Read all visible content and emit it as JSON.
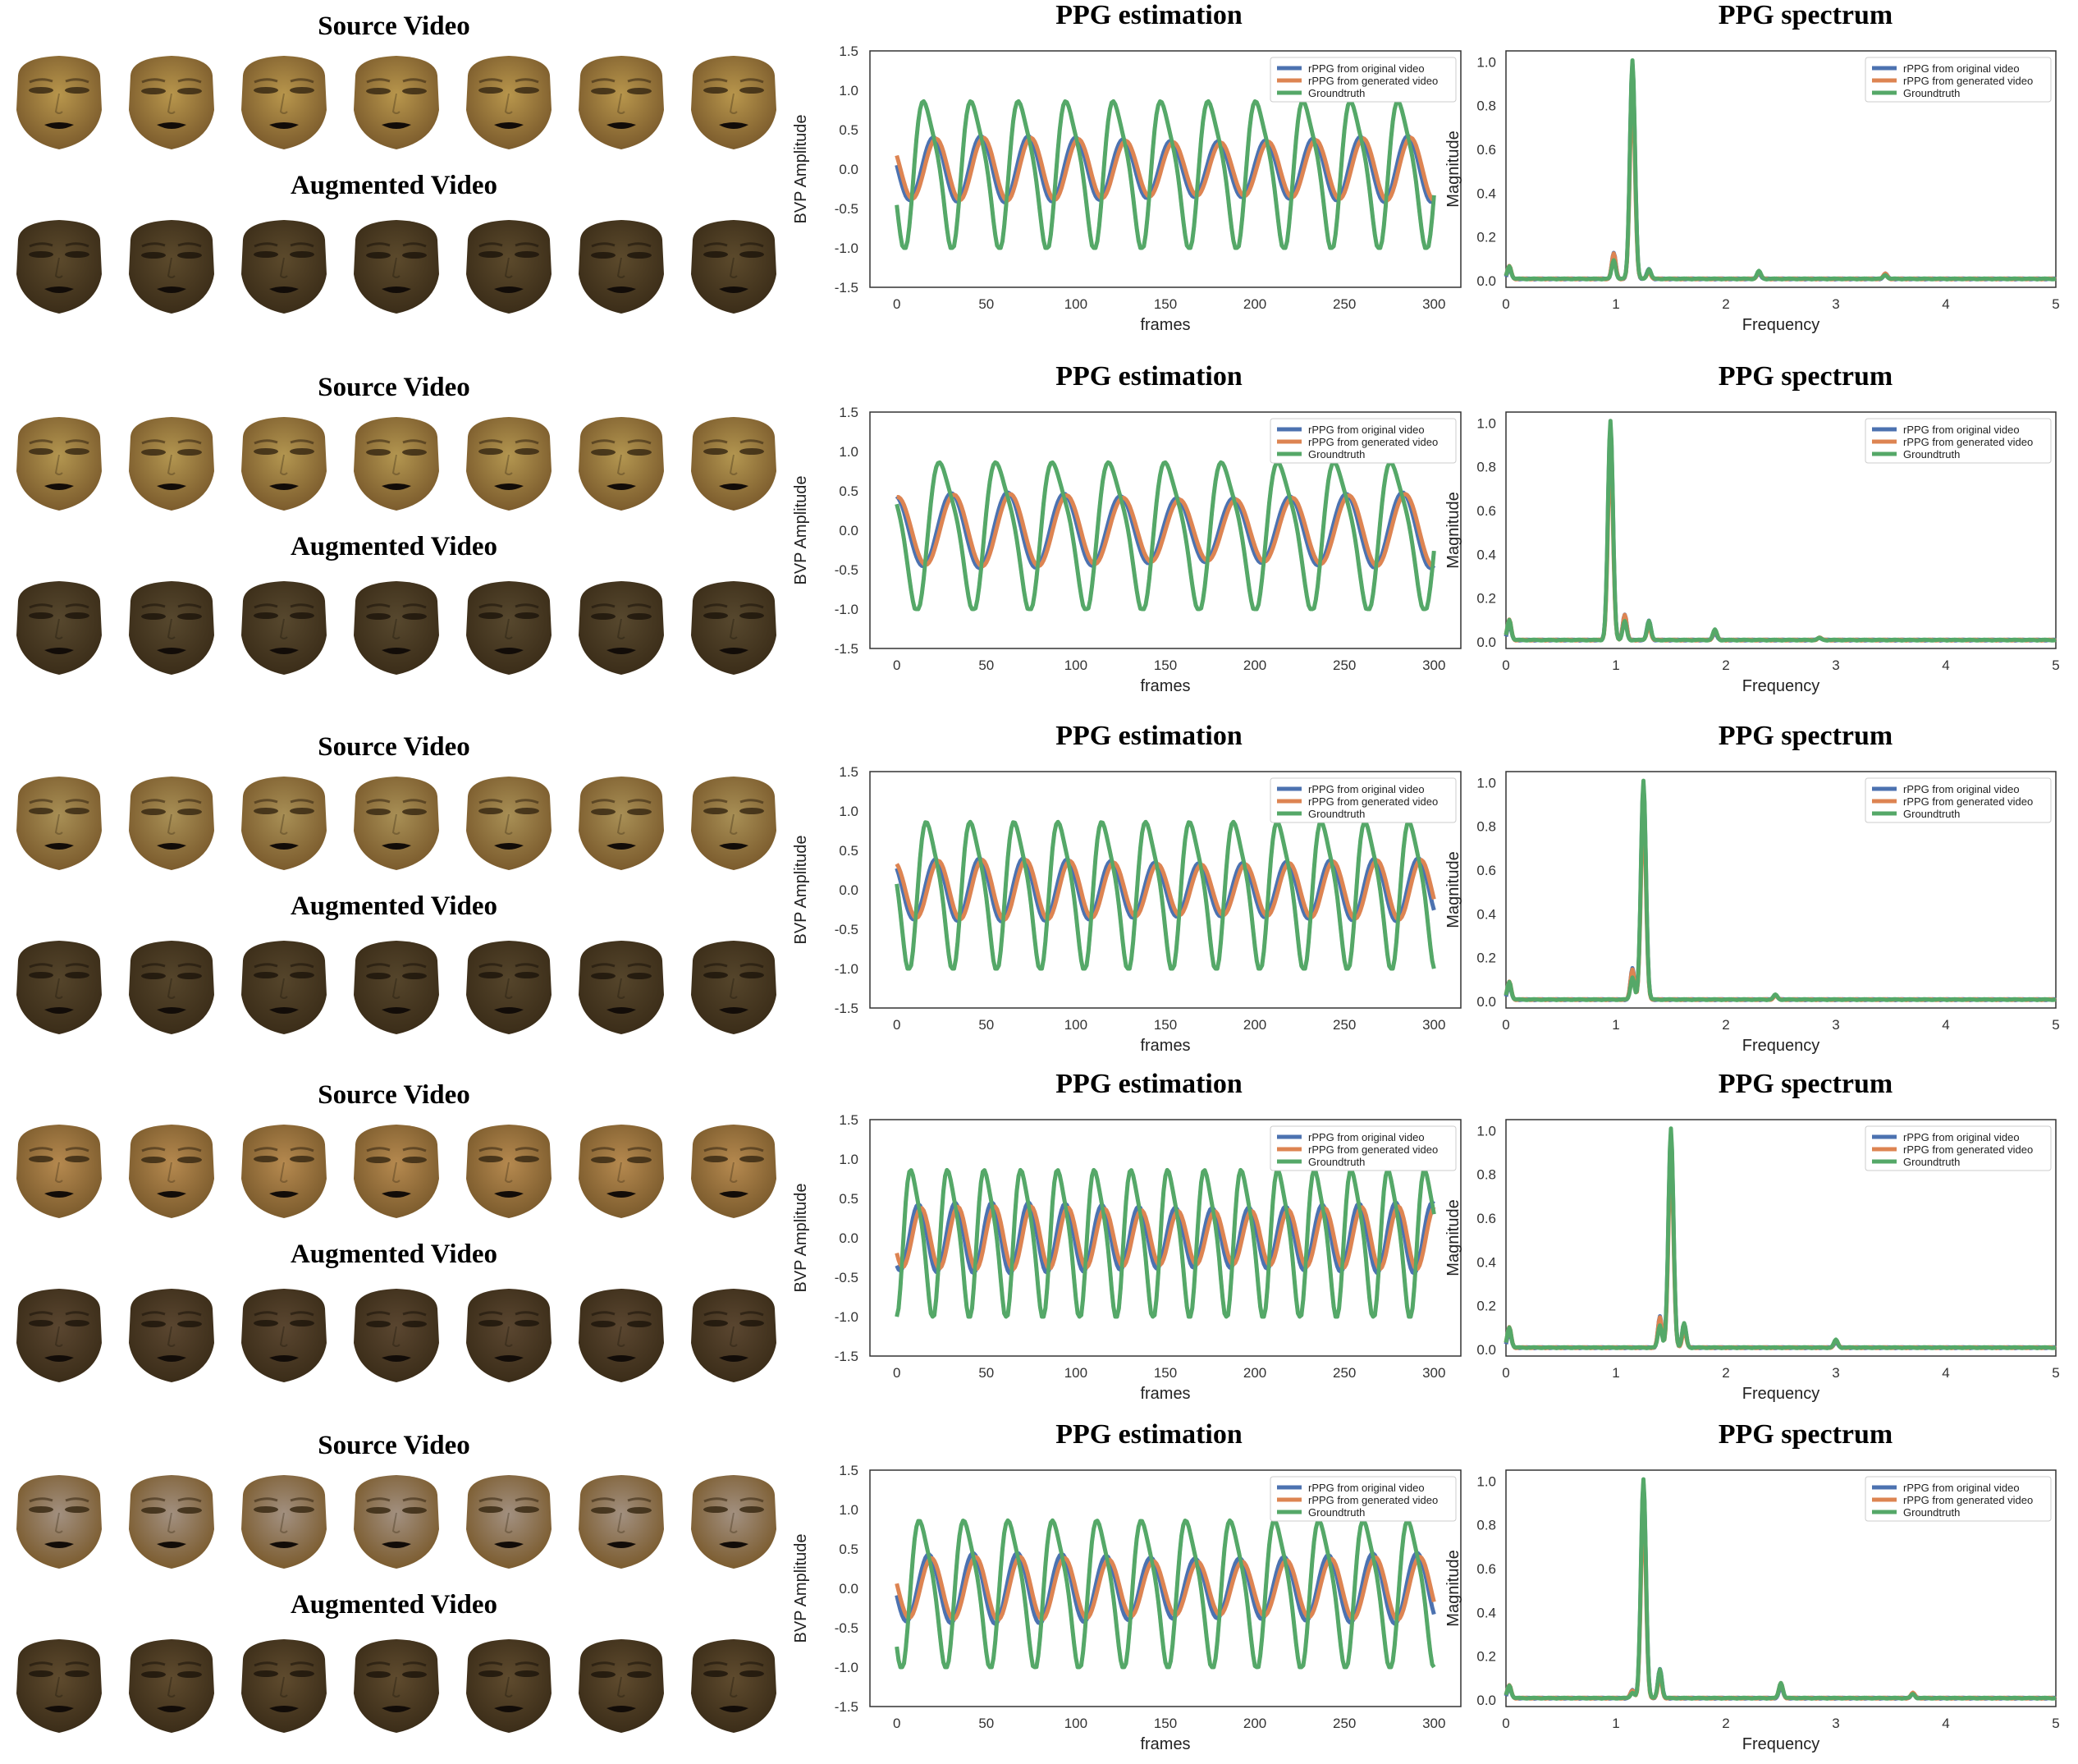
{
  "labels": {
    "source": "Source Video",
    "augmented": "Augmented Video",
    "ppg_title": "PPG estimation",
    "spec_title": "PPG spectrum",
    "ppg_xlabel": "frames",
    "ppg_ylabel": "BVP Amplitude",
    "spec_xlabel": "Frequency",
    "spec_ylabel": "Magnitude"
  },
  "colors": {
    "original": "#4c72b0",
    "generated": "#dd8452",
    "groundtruth": "#55a868"
  },
  "legend": [
    "rPPG from original video",
    "rPPG from generated video",
    "Groundtruth"
  ],
  "face_palettes": {
    "source": [
      "#b8964c",
      "#b39650",
      "#a88f55",
      "#b5894f",
      "#a29080"
    ],
    "augmented": [
      "#5c4a2c",
      "#57482e",
      "#55452b",
      "#5a4630",
      "#5f4b2e"
    ]
  },
  "chart_data": [
    {
      "type": "line",
      "title": "PPG estimation",
      "xlabel": "frames",
      "ylabel": "BVP Amplitude",
      "xlim": [
        -15,
        315
      ],
      "ylim": [
        -1.5,
        1.5
      ],
      "xticks": [
        0,
        50,
        100,
        150,
        200,
        250,
        300
      ],
      "yticks": [
        1.5,
        1.0,
        0.5,
        0.0,
        -0.5,
        -1.0,
        -1.5
      ],
      "signal": {
        "period_frames": 26.5,
        "phase_frames": 10,
        "gt_amplitude": 1.0,
        "original_amplitude": 0.42,
        "generated_amplitude": 0.4
      },
      "series": [
        {
          "name": "rPPG from original video"
        },
        {
          "name": "rPPG from generated video"
        },
        {
          "name": "Groundtruth"
        }
      ]
    },
    {
      "type": "line",
      "title": "PPG spectrum",
      "xlabel": "Frequency",
      "ylabel": "Magnitude",
      "xlim": [
        0,
        5
      ],
      "ylim": [
        -0.03,
        1.05
      ],
      "xticks": [
        0,
        1,
        2,
        3,
        4,
        5
      ],
      "yticks": [
        1.0,
        0.8,
        0.6,
        0.4,
        0.2,
        0.0
      ],
      "peak": {
        "frequency": 1.15,
        "magnitude": 1.0
      },
      "minor_peaks": [
        {
          "frequency": 0.03,
          "magnitude": 0.05
        },
        {
          "frequency": 0.98,
          "magnitude": 0.1
        },
        {
          "frequency": 1.3,
          "magnitude": 0.04
        },
        {
          "frequency": 2.3,
          "magnitude": 0.03
        },
        {
          "frequency": 3.45,
          "magnitude": 0.02
        }
      ],
      "series": [
        {
          "name": "rPPG from original video"
        },
        {
          "name": "rPPG from generated video"
        },
        {
          "name": "Groundtruth"
        }
      ]
    },
    {
      "type": "line",
      "title": "PPG estimation",
      "xlabel": "frames",
      "ylabel": "BVP Amplitude",
      "xlim": [
        -15,
        315
      ],
      "ylim": [
        -1.5,
        1.5
      ],
      "xticks": [
        0,
        50,
        100,
        150,
        200,
        250,
        300
      ],
      "yticks": [
        1.5,
        1.0,
        0.5,
        0.0,
        -0.5,
        -1.0,
        -1.5
      ],
      "signal": {
        "period_frames": 31.5,
        "phase_frames": 18,
        "gt_amplitude": 1.0,
        "original_amplitude": 0.48,
        "generated_amplitude": 0.46
      },
      "series": [
        {
          "name": "rPPG from original video"
        },
        {
          "name": "rPPG from generated video"
        },
        {
          "name": "Groundtruth"
        }
      ]
    },
    {
      "type": "line",
      "title": "PPG spectrum",
      "xlabel": "Frequency",
      "ylabel": "Magnitude",
      "xlim": [
        0,
        5
      ],
      "ylim": [
        -0.03,
        1.05
      ],
      "xticks": [
        0,
        1,
        2,
        3,
        4,
        5
      ],
      "yticks": [
        1.0,
        0.8,
        0.6,
        0.4,
        0.2,
        0.0
      ],
      "peak": {
        "frequency": 0.95,
        "magnitude": 1.0
      },
      "minor_peaks": [
        {
          "frequency": 0.03,
          "magnitude": 0.08
        },
        {
          "frequency": 1.08,
          "magnitude": 0.1
        },
        {
          "frequency": 1.3,
          "magnitude": 0.08
        },
        {
          "frequency": 1.9,
          "magnitude": 0.04
        },
        {
          "frequency": 2.85,
          "magnitude": 0.01
        }
      ],
      "series": [
        {
          "name": "rPPG from original video"
        },
        {
          "name": "rPPG from generated video"
        },
        {
          "name": "Groundtruth"
        }
      ]
    },
    {
      "type": "line",
      "title": "PPG estimation",
      "xlabel": "frames",
      "ylabel": "BVP Amplitude",
      "xlim": [
        -15,
        315
      ],
      "ylim": [
        -1.5,
        1.5
      ],
      "xticks": [
        0,
        50,
        100,
        150,
        200,
        250,
        300
      ],
      "yticks": [
        1.5,
        1.0,
        0.5,
        0.0,
        -0.5,
        -1.0,
        -1.5
      ],
      "signal": {
        "period_frames": 24.5,
        "phase_frames": 12,
        "gt_amplitude": 1.0,
        "original_amplitude": 0.4,
        "generated_amplitude": 0.38
      },
      "series": [
        {
          "name": "rPPG from original video"
        },
        {
          "name": "rPPG from generated video"
        },
        {
          "name": "Groundtruth"
        }
      ]
    },
    {
      "type": "line",
      "title": "PPG spectrum",
      "xlabel": "Frequency",
      "ylabel": "Magnitude",
      "xlim": [
        0,
        5
      ],
      "ylim": [
        -0.03,
        1.05
      ],
      "xticks": [
        0,
        1,
        2,
        3,
        4,
        5
      ],
      "yticks": [
        1.0,
        0.8,
        0.6,
        0.4,
        0.2,
        0.0
      ],
      "peak": {
        "frequency": 1.25,
        "magnitude": 1.0
      },
      "minor_peaks": [
        {
          "frequency": 0.03,
          "magnitude": 0.07
        },
        {
          "frequency": 1.15,
          "magnitude": 0.12
        },
        {
          "frequency": 2.45,
          "magnitude": 0.02
        }
      ],
      "series": [
        {
          "name": "rPPG from original video"
        },
        {
          "name": "rPPG from generated video"
        },
        {
          "name": "Groundtruth"
        }
      ]
    },
    {
      "type": "line",
      "title": "PPG estimation",
      "xlabel": "frames",
      "ylabel": "BVP Amplitude",
      "xlim": [
        -15,
        315
      ],
      "ylim": [
        -1.5,
        1.5
      ],
      "xticks": [
        0,
        50,
        100,
        150,
        200,
        250,
        300
      ],
      "yticks": [
        1.5,
        1.0,
        0.5,
        0.0,
        -0.5,
        -1.0,
        -1.5
      ],
      "signal": {
        "period_frames": 20.5,
        "phase_frames": 4,
        "gt_amplitude": 1.0,
        "original_amplitude": 0.45,
        "generated_amplitude": 0.4
      },
      "series": [
        {
          "name": "rPPG from original video"
        },
        {
          "name": "rPPG from generated video"
        },
        {
          "name": "Groundtruth"
        }
      ]
    },
    {
      "type": "line",
      "title": "PPG spectrum",
      "xlabel": "Frequency",
      "ylabel": "Magnitude",
      "xlim": [
        0,
        5
      ],
      "ylim": [
        -0.03,
        1.05
      ],
      "xticks": [
        0,
        1,
        2,
        3,
        4,
        5
      ],
      "yticks": [
        1.0,
        0.8,
        0.6,
        0.4,
        0.2,
        0.0
      ],
      "peak": {
        "frequency": 1.5,
        "magnitude": 1.0
      },
      "minor_peaks": [
        {
          "frequency": 0.03,
          "magnitude": 0.08
        },
        {
          "frequency": 1.4,
          "magnitude": 0.12
        },
        {
          "frequency": 1.62,
          "magnitude": 0.1
        },
        {
          "frequency": 3.0,
          "magnitude": 0.03
        }
      ],
      "series": [
        {
          "name": "rPPG from original video"
        },
        {
          "name": "rPPG from generated video"
        },
        {
          "name": "Groundtruth"
        }
      ]
    },
    {
      "type": "line",
      "title": "PPG estimation",
      "xlabel": "frames",
      "ylabel": "BVP Amplitude",
      "xlim": [
        -15,
        315
      ],
      "ylim": [
        -1.5,
        1.5
      ],
      "xticks": [
        0,
        50,
        100,
        150,
        200,
        250,
        300
      ],
      "yticks": [
        1.5,
        1.0,
        0.5,
        0.0,
        -0.5,
        -1.0,
        -1.5
      ],
      "signal": {
        "period_frames": 24.8,
        "phase_frames": 8,
        "gt_amplitude": 1.0,
        "original_amplitude": 0.45,
        "generated_amplitude": 0.4
      },
      "series": [
        {
          "name": "rPPG from original video"
        },
        {
          "name": "rPPG from generated video"
        },
        {
          "name": "Groundtruth"
        }
      ]
    },
    {
      "type": "line",
      "title": "PPG spectrum",
      "xlabel": "Frequency",
      "ylabel": "Magnitude",
      "xlim": [
        0,
        5
      ],
      "ylim": [
        -0.03,
        1.05
      ],
      "xticks": [
        0,
        1,
        2,
        3,
        4,
        5
      ],
      "yticks": [
        1.0,
        0.8,
        0.6,
        0.4,
        0.2,
        0.0
      ],
      "peak": {
        "frequency": 1.25,
        "magnitude": 1.0
      },
      "minor_peaks": [
        {
          "frequency": 0.03,
          "magnitude": 0.05
        },
        {
          "frequency": 1.15,
          "magnitude": 0.03
        },
        {
          "frequency": 1.4,
          "magnitude": 0.12
        },
        {
          "frequency": 2.5,
          "magnitude": 0.06
        },
        {
          "frequency": 3.7,
          "magnitude": 0.02
        }
      ],
      "series": [
        {
          "name": "rPPG from original video"
        },
        {
          "name": "rPPG from generated video"
        },
        {
          "name": "Groundtruth"
        }
      ]
    }
  ]
}
